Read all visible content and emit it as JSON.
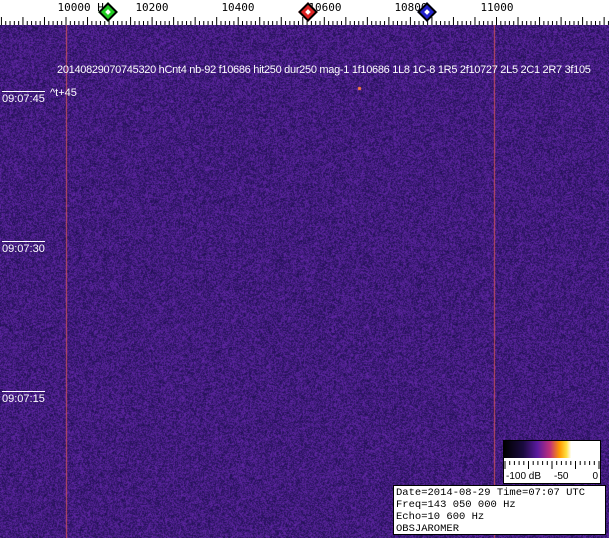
{
  "axis": {
    "unit": "Hz",
    "labels": [
      "10000",
      "10200",
      "10400",
      "10600",
      "10800",
      "11000"
    ],
    "first_label": "10000 Hz"
  },
  "markers": [
    {
      "name": "green-marker",
      "color": "#22cc22",
      "freq": 10095
    },
    {
      "name": "red-marker",
      "color": "#dd2222",
      "freq": 10560
    },
    {
      "name": "blue-marker",
      "color": "#2222cc",
      "freq": 10835
    }
  ],
  "detection": "20140829070745320 hCnt4 nb-92 f10686 hit250 dur250 mag-1 1f10686 1L8 1C-8 1R5 2f10727 2L5 2C1 2R7 3f105",
  "offset_label": "^t+45",
  "time_labels": [
    "09:07:45",
    "09:07:30",
    "09:07:15"
  ],
  "colorbar": {
    "labels": [
      "-100 dB",
      "-50",
      "0"
    ]
  },
  "info": {
    "line1": "Date=2014-08-29 Time=07:07 UTC",
    "line2": "Freq=143 050 000 Hz",
    "line3": "Echo=10 600 Hz",
    "line4": "OBSJAROMER"
  },
  "colors": {
    "background": "#2a1870",
    "carrier": "#c05060"
  }
}
